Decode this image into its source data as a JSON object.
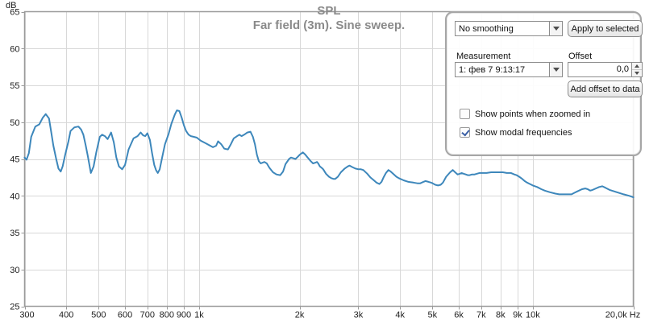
{
  "chart_data": {
    "type": "line",
    "title": "SPL",
    "subtitle": "Far field (3m). Sine sweep.",
    "grid": true,
    "x_axis": {
      "scale": "log",
      "unit": "Hz",
      "min": 300,
      "max": 20000,
      "ticks": [
        {
          "f": 300,
          "label": "300"
        },
        {
          "f": 400,
          "label": "400"
        },
        {
          "f": 500,
          "label": "500"
        },
        {
          "f": 600,
          "label": "600"
        },
        {
          "f": 700,
          "label": "700"
        },
        {
          "f": 800,
          "label": "800"
        },
        {
          "f": 900,
          "label": "900"
        },
        {
          "f": 1000,
          "label": "1k"
        },
        {
          "f": 2000,
          "label": "2k"
        },
        {
          "f": 3000,
          "label": "3k"
        },
        {
          "f": 4000,
          "label": "4k"
        },
        {
          "f": 5000,
          "label": "5k"
        },
        {
          "f": 6000,
          "label": "6k"
        },
        {
          "f": 7000,
          "label": "7k"
        },
        {
          "f": 8000,
          "label": "8k"
        },
        {
          "f": 9000,
          "label": "9k"
        },
        {
          "f": 10000,
          "label": "10k"
        },
        {
          "f": 20000,
          "label": "20,0k Hz"
        }
      ]
    },
    "y_axis": {
      "unit": "dB",
      "min": 25,
      "max": 65,
      "step": 5,
      "ticks": [
        65,
        60,
        55,
        50,
        45,
        40,
        35,
        30,
        25
      ]
    },
    "series": [
      {
        "name": "1: фев 7 9:13:17",
        "color": "#3d87bb",
        "points": [
          [
            300,
            45.2
          ],
          [
            304,
            44.9
          ],
          [
            309,
            45.8
          ],
          [
            314,
            48.0
          ],
          [
            323,
            49.4
          ],
          [
            332,
            49.7
          ],
          [
            340,
            50.6
          ],
          [
            347,
            51.1
          ],
          [
            355,
            50.5
          ],
          [
            360,
            48.8
          ],
          [
            366,
            46.8
          ],
          [
            373,
            45.0
          ],
          [
            379,
            43.7
          ],
          [
            385,
            43.3
          ],
          [
            390,
            44.0
          ],
          [
            397,
            45.6
          ],
          [
            406,
            47.4
          ],
          [
            412,
            48.8
          ],
          [
            423,
            49.3
          ],
          [
            435,
            49.4
          ],
          [
            443,
            49.0
          ],
          [
            450,
            48.3
          ],
          [
            457,
            46.9
          ],
          [
            464,
            45.4
          ],
          [
            474,
            43.1
          ],
          [
            483,
            44.0
          ],
          [
            492,
            45.9
          ],
          [
            504,
            48.0
          ],
          [
            512,
            48.3
          ],
          [
            522,
            48.1
          ],
          [
            532,
            47.7
          ],
          [
            545,
            48.6
          ],
          [
            555,
            47.3
          ],
          [
            565,
            45.2
          ],
          [
            575,
            44.0
          ],
          [
            588,
            43.6
          ],
          [
            600,
            44.2
          ],
          [
            615,
            46.3
          ],
          [
            636,
            47.8
          ],
          [
            654,
            48.1
          ],
          [
            668,
            48.6
          ],
          [
            680,
            48.2
          ],
          [
            690,
            48.1
          ],
          [
            700,
            48.5
          ],
          [
            712,
            47.6
          ],
          [
            723,
            45.8
          ],
          [
            734,
            44.2
          ],
          [
            743,
            43.5
          ],
          [
            752,
            43.1
          ],
          [
            762,
            43.6
          ],
          [
            775,
            45.2
          ],
          [
            790,
            47.0
          ],
          [
            810,
            48.4
          ],
          [
            826,
            49.8
          ],
          [
            845,
            51.0
          ],
          [
            858,
            51.6
          ],
          [
            873,
            51.5
          ],
          [
            887,
            50.6
          ],
          [
            900,
            49.6
          ],
          [
            914,
            48.8
          ],
          [
            930,
            48.3
          ],
          [
            945,
            48.1
          ],
          [
            965,
            48.0
          ],
          [
            985,
            47.9
          ],
          [
            1010,
            47.5
          ],
          [
            1040,
            47.2
          ],
          [
            1070,
            46.9
          ],
          [
            1100,
            46.6
          ],
          [
            1125,
            46.8
          ],
          [
            1140,
            47.4
          ],
          [
            1165,
            47.0
          ],
          [
            1190,
            46.4
          ],
          [
            1220,
            46.3
          ],
          [
            1245,
            47.0
          ],
          [
            1270,
            47.8
          ],
          [
            1300,
            48.1
          ],
          [
            1320,
            48.3
          ],
          [
            1340,
            48.1
          ],
          [
            1365,
            48.3
          ],
          [
            1395,
            48.6
          ],
          [
            1425,
            48.7
          ],
          [
            1450,
            48.0
          ],
          [
            1470,
            47.0
          ],
          [
            1490,
            45.6
          ],
          [
            1510,
            44.7
          ],
          [
            1530,
            44.4
          ],
          [
            1550,
            44.5
          ],
          [
            1570,
            44.6
          ],
          [
            1595,
            44.4
          ],
          [
            1625,
            43.8
          ],
          [
            1665,
            43.2
          ],
          [
            1705,
            42.9
          ],
          [
            1750,
            42.8
          ],
          [
            1785,
            43.3
          ],
          [
            1815,
            44.3
          ],
          [
            1860,
            45.0
          ],
          [
            1885,
            45.2
          ],
          [
            1915,
            45.1
          ],
          [
            1945,
            45.0
          ],
          [
            1975,
            45.3
          ],
          [
            2005,
            45.6
          ],
          [
            2045,
            45.9
          ],
          [
            2080,
            45.6
          ],
          [
            2115,
            45.2
          ],
          [
            2160,
            44.7
          ],
          [
            2195,
            44.4
          ],
          [
            2230,
            44.5
          ],
          [
            2255,
            44.6
          ],
          [
            2275,
            44.4
          ],
          [
            2300,
            44.0
          ],
          [
            2330,
            43.8
          ],
          [
            2355,
            43.6
          ],
          [
            2400,
            43.0
          ],
          [
            2450,
            42.6
          ],
          [
            2490,
            42.4
          ],
          [
            2525,
            42.3
          ],
          [
            2560,
            42.3
          ],
          [
            2605,
            42.6
          ],
          [
            2660,
            43.2
          ],
          [
            2730,
            43.7
          ],
          [
            2790,
            44.0
          ],
          [
            2825,
            44.1
          ],
          [
            2880,
            43.9
          ],
          [
            2940,
            43.7
          ],
          [
            3005,
            43.6
          ],
          [
            3055,
            43.6
          ],
          [
            3105,
            43.5
          ],
          [
            3190,
            43.0
          ],
          [
            3260,
            42.5
          ],
          [
            3320,
            42.2
          ],
          [
            3400,
            41.8
          ],
          [
            3470,
            41.6
          ],
          [
            3520,
            41.9
          ],
          [
            3570,
            42.5
          ],
          [
            3630,
            43.1
          ],
          [
            3690,
            43.5
          ],
          [
            3750,
            43.3
          ],
          [
            3835,
            42.9
          ],
          [
            3900,
            42.6
          ],
          [
            3965,
            42.4
          ],
          [
            4100,
            42.1
          ],
          [
            4240,
            41.9
          ],
          [
            4385,
            41.8
          ],
          [
            4510,
            41.7
          ],
          [
            4600,
            41.7
          ],
          [
            4700,
            41.9
          ],
          [
            4765,
            42.0
          ],
          [
            4870,
            41.9
          ],
          [
            4950,
            41.8
          ],
          [
            5010,
            41.7
          ],
          [
            5100,
            41.5
          ],
          [
            5200,
            41.4
          ],
          [
            5295,
            41.5
          ],
          [
            5380,
            41.8
          ],
          [
            5500,
            42.6
          ],
          [
            5650,
            43.2
          ],
          [
            5755,
            43.5
          ],
          [
            5850,
            43.2
          ],
          [
            5950,
            42.9
          ],
          [
            6050,
            43.0
          ],
          [
            6120,
            43.1
          ],
          [
            6200,
            43.0
          ],
          [
            6295,
            42.9
          ],
          [
            6380,
            42.8
          ],
          [
            6470,
            42.8
          ],
          [
            6570,
            42.9
          ],
          [
            6690,
            42.9
          ],
          [
            6800,
            43.0
          ],
          [
            6915,
            43.1
          ],
          [
            7100,
            43.1
          ],
          [
            7270,
            43.1
          ],
          [
            7500,
            43.2
          ],
          [
            7690,
            43.2
          ],
          [
            7900,
            43.2
          ],
          [
            8130,
            43.2
          ],
          [
            8350,
            43.1
          ],
          [
            8600,
            43.1
          ],
          [
            8800,
            42.9
          ],
          [
            8940,
            42.8
          ],
          [
            9100,
            42.6
          ],
          [
            9295,
            42.3
          ],
          [
            9450,
            42.0
          ],
          [
            9610,
            41.8
          ],
          [
            9800,
            41.6
          ],
          [
            10000,
            41.4
          ],
          [
            10300,
            41.2
          ],
          [
            10600,
            40.9
          ],
          [
            10860,
            40.7
          ],
          [
            11230,
            40.5
          ],
          [
            11680,
            40.3
          ],
          [
            12000,
            40.2
          ],
          [
            12350,
            40.2
          ],
          [
            13060,
            40.2
          ],
          [
            13300,
            40.4
          ],
          [
            13580,
            40.6
          ],
          [
            14040,
            40.9
          ],
          [
            14360,
            41.0
          ],
          [
            14600,
            40.9
          ],
          [
            14850,
            40.7
          ],
          [
            15100,
            40.8
          ],
          [
            15440,
            41.0
          ],
          [
            15800,
            41.2
          ],
          [
            16150,
            41.3
          ],
          [
            16500,
            41.1
          ],
          [
            16980,
            40.8
          ],
          [
            17560,
            40.6
          ],
          [
            18100,
            40.4
          ],
          [
            18710,
            40.2
          ],
          [
            19460,
            40.0
          ],
          [
            20000,
            39.8
          ]
        ]
      }
    ]
  },
  "panel": {
    "smoothing_value": "No smoothing",
    "apply_button": "Apply to selected",
    "measurement_label": "Measurement",
    "measurement_value": "1: фев 7 9:13:17",
    "offset_label": "Offset",
    "offset_value": "0,0",
    "add_offset_button": "Add offset to data",
    "checkboxes": [
      {
        "label": "Show points when zoomed in",
        "checked": false
      },
      {
        "label": "Show modal frequencies",
        "checked": true
      }
    ]
  },
  "colors": {
    "trace": "#3d87bb",
    "grid": "#d8d8d8",
    "axis_border": "#9b9b9b",
    "title_text": "#8a8a8a",
    "axis_text": "#1d1d1d"
  }
}
